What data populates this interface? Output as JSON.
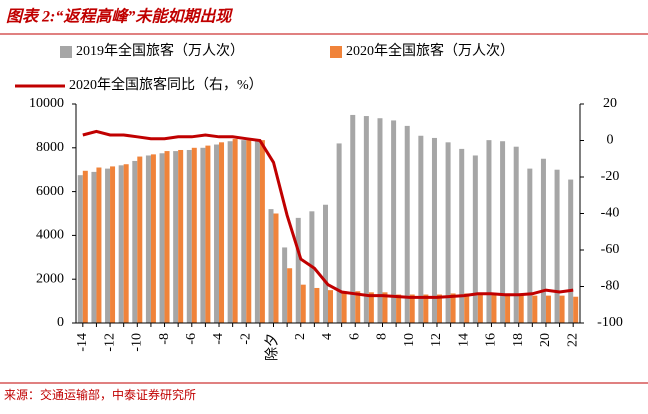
{
  "chart_data": {
    "type": "bar_line",
    "title": "图表 2:“返程高峰”未能如期出现",
    "source": "来源：交通运输部，中泰证券研究所",
    "categories": [
      "-14",
      null,
      "-12",
      null,
      "-10",
      null,
      "-8",
      null,
      "-6",
      null,
      "-4",
      null,
      "-2",
      null,
      "除夕",
      null,
      "2",
      null,
      "4",
      null,
      "6",
      null,
      "8",
      null,
      "10",
      null,
      "12",
      null,
      "14",
      null,
      "16",
      null,
      "18",
      null,
      "20",
      null,
      "22"
    ],
    "series": [
      {
        "name": "2019年全国旅客（万人次）",
        "type": "bar",
        "color": "#a6a6a6",
        "values": [
          6750,
          6900,
          7050,
          7200,
          7400,
          7650,
          7750,
          7850,
          7900,
          8000,
          8150,
          8300,
          8350,
          8300,
          5200,
          3450,
          4800,
          5100,
          5400,
          8200,
          9500,
          9450,
          9350,
          9250,
          9000,
          8550,
          8450,
          8250,
          7950,
          7650,
          8350,
          8300,
          8050,
          7050,
          7500,
          7000,
          6550
        ]
      },
      {
        "name": "2020年全国旅客（万人次）",
        "type": "bar",
        "color": "#f0833a",
        "values": [
          6950,
          7100,
          7150,
          7250,
          7600,
          7700,
          7850,
          7900,
          8000,
          8100,
          8250,
          8400,
          8350,
          8350,
          5000,
          2500,
          1750,
          1600,
          1500,
          1450,
          1450,
          1400,
          1400,
          1300,
          1300,
          1300,
          1300,
          1350,
          1350,
          1350,
          1350,
          1350,
          1300,
          1250,
          1250,
          1250,
          1200
        ]
      },
      {
        "name": "2020年全国旅客同比（右，%）",
        "type": "line",
        "axis": "y2",
        "color": "#c00000",
        "values": [
          3,
          5,
          3,
          3,
          2,
          1,
          1,
          2,
          2,
          3,
          2,
          2,
          1,
          0,
          -12,
          -41,
          -65,
          -70,
          -79,
          -83,
          -84,
          -85,
          -85,
          -85.5,
          -86,
          -86,
          -86,
          -85.5,
          -85,
          -84,
          -84,
          -84.5,
          -84.5,
          -84,
          -82,
          -83,
          -82
        ]
      }
    ],
    "ylim": [
      0,
      10000
    ],
    "yticks": [
      0,
      2000,
      4000,
      6000,
      8000,
      10000
    ],
    "y2lim": [
      -100,
      20
    ],
    "y2ticks": [
      -100,
      -80,
      -60,
      -40,
      -20,
      0,
      20
    ]
  }
}
